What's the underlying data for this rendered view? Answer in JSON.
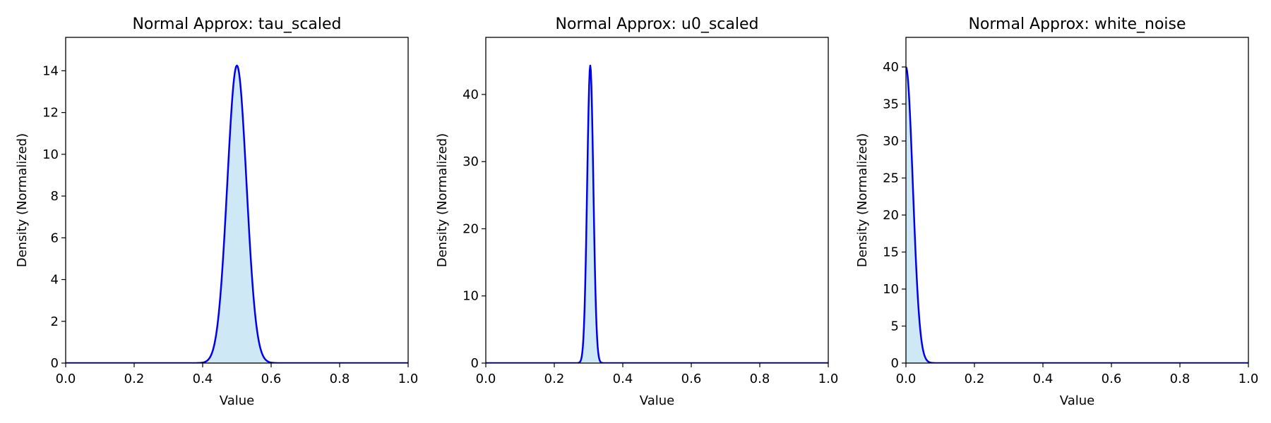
{
  "figure": {
    "background": "#ffffff"
  },
  "colors": {
    "line": "#0000ee",
    "fill": "#cfe8f5",
    "axes": "#000000"
  },
  "chart_data": [
    {
      "type": "area",
      "title": "Normal Approx: tau_scaled",
      "xlabel": "Value",
      "ylabel": "Density (Normalized)",
      "xlim": [
        0,
        1
      ],
      "ylim": [
        0,
        15.6
      ],
      "xticks": [
        0.0,
        0.2,
        0.4,
        0.6,
        0.8,
        1.0
      ],
      "xtick_labels": [
        "0.0",
        "0.2",
        "0.4",
        "0.6",
        "0.8",
        "1.0"
      ],
      "yticks": [
        0,
        2,
        4,
        6,
        8,
        10,
        12,
        14
      ],
      "ytick_labels": [
        "0",
        "2",
        "4",
        "6",
        "8",
        "10",
        "12",
        "14"
      ],
      "distribution": {
        "mean": 0.5,
        "std": 0.028,
        "peak": 14.25
      },
      "grid": false
    },
    {
      "type": "area",
      "title": "Normal Approx: u0_scaled",
      "xlabel": "Value",
      "ylabel": "Density (Normalized)",
      "xlim": [
        0,
        1
      ],
      "ylim": [
        0,
        48.5
      ],
      "xticks": [
        0.0,
        0.2,
        0.4,
        0.6,
        0.8,
        1.0
      ],
      "xtick_labels": [
        "0.0",
        "0.2",
        "0.4",
        "0.6",
        "0.8",
        "1.0"
      ],
      "yticks": [
        0,
        10,
        20,
        30,
        40
      ],
      "ytick_labels": [
        "0",
        "10",
        "20",
        "30",
        "40"
      ],
      "distribution": {
        "mean": 0.305,
        "std": 0.009,
        "peak": 44.3
      },
      "grid": false
    },
    {
      "type": "area",
      "title": "Normal Approx: white_noise",
      "xlabel": "Value",
      "ylabel": "Density (Normalized)",
      "xlim": [
        0,
        1
      ],
      "ylim": [
        0,
        44
      ],
      "xticks": [
        0.0,
        0.2,
        0.4,
        0.6,
        0.8,
        1.0
      ],
      "xtick_labels": [
        "0.0",
        "0.2",
        "0.4",
        "0.6",
        "0.8",
        "1.0"
      ],
      "yticks": [
        0,
        5,
        10,
        15,
        20,
        25,
        30,
        35,
        40
      ],
      "ytick_labels": [
        "0",
        "5",
        "10",
        "15",
        "20",
        "25",
        "30",
        "35",
        "40"
      ],
      "distribution": {
        "mean": 0.0,
        "std": 0.02,
        "peak": 40.0
      },
      "grid": false
    }
  ]
}
